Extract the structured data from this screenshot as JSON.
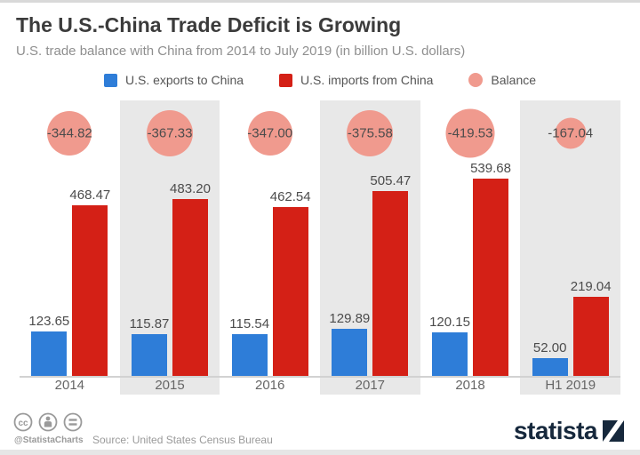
{
  "header": {
    "title": "The U.S.-China Trade Deficit is Growing",
    "subtitle": "U.S. trade balance with China from 2014 to July 2019 (in billion U.S. dollars)"
  },
  "legend": {
    "items": [
      {
        "label": "U.S. exports to China",
        "shape": "square",
        "color": "#2e7dd8"
      },
      {
        "label": "U.S. imports from China",
        "shape": "square",
        "color": "#d42016"
      },
      {
        "label": "Balance",
        "shape": "circle",
        "color": "#f09a8e"
      }
    ]
  },
  "chart_data": {
    "type": "bar",
    "title": "The U.S.-China Trade Deficit is Growing",
    "subtitle": "U.S. trade balance with China from 2014 to July 2019 (in billion U.S. dollars)",
    "categories": [
      "2014",
      "2015",
      "2016",
      "2017",
      "2018",
      "H1 2019"
    ],
    "series": [
      {
        "name": "U.S. exports to China",
        "type": "bar",
        "color": "#2e7dd8",
        "values": [
          123.65,
          115.87,
          115.54,
          129.89,
          120.15,
          52.0
        ],
        "labels": [
          "123.65",
          "115.87",
          "115.54",
          "129.89",
          "120.15",
          "52.00"
        ]
      },
      {
        "name": "U.S. imports from China",
        "type": "bar",
        "color": "#d42016",
        "values": [
          468.47,
          483.2,
          462.54,
          505.47,
          539.68,
          219.04
        ],
        "labels": [
          "468.47",
          "483.20",
          "462.54",
          "505.47",
          "539.68",
          "219.04"
        ]
      },
      {
        "name": "Balance",
        "type": "bubble",
        "color": "#f09a8e",
        "values": [
          -344.82,
          -367.33,
          -347.0,
          -375.58,
          -419.53,
          -167.04
        ],
        "labels": [
          "-344.82",
          "-367.33",
          "-347.00",
          "-375.58",
          "-419.53",
          "-167.04"
        ]
      }
    ],
    "shaded_columns": [
      1,
      3,
      5
    ],
    "shade_color": "#e8e8e8",
    "ylim": [
      0,
      560
    ],
    "grid": false,
    "legend_position": "top",
    "value_labels_shown": true
  },
  "footer": {
    "handle": "@StatistaCharts",
    "source": "Source: United States Census Bureau",
    "brand": "statista",
    "license_icons": [
      "cc-icon",
      "attribution-icon",
      "equal-icon"
    ],
    "brand_color": "#16283c"
  }
}
